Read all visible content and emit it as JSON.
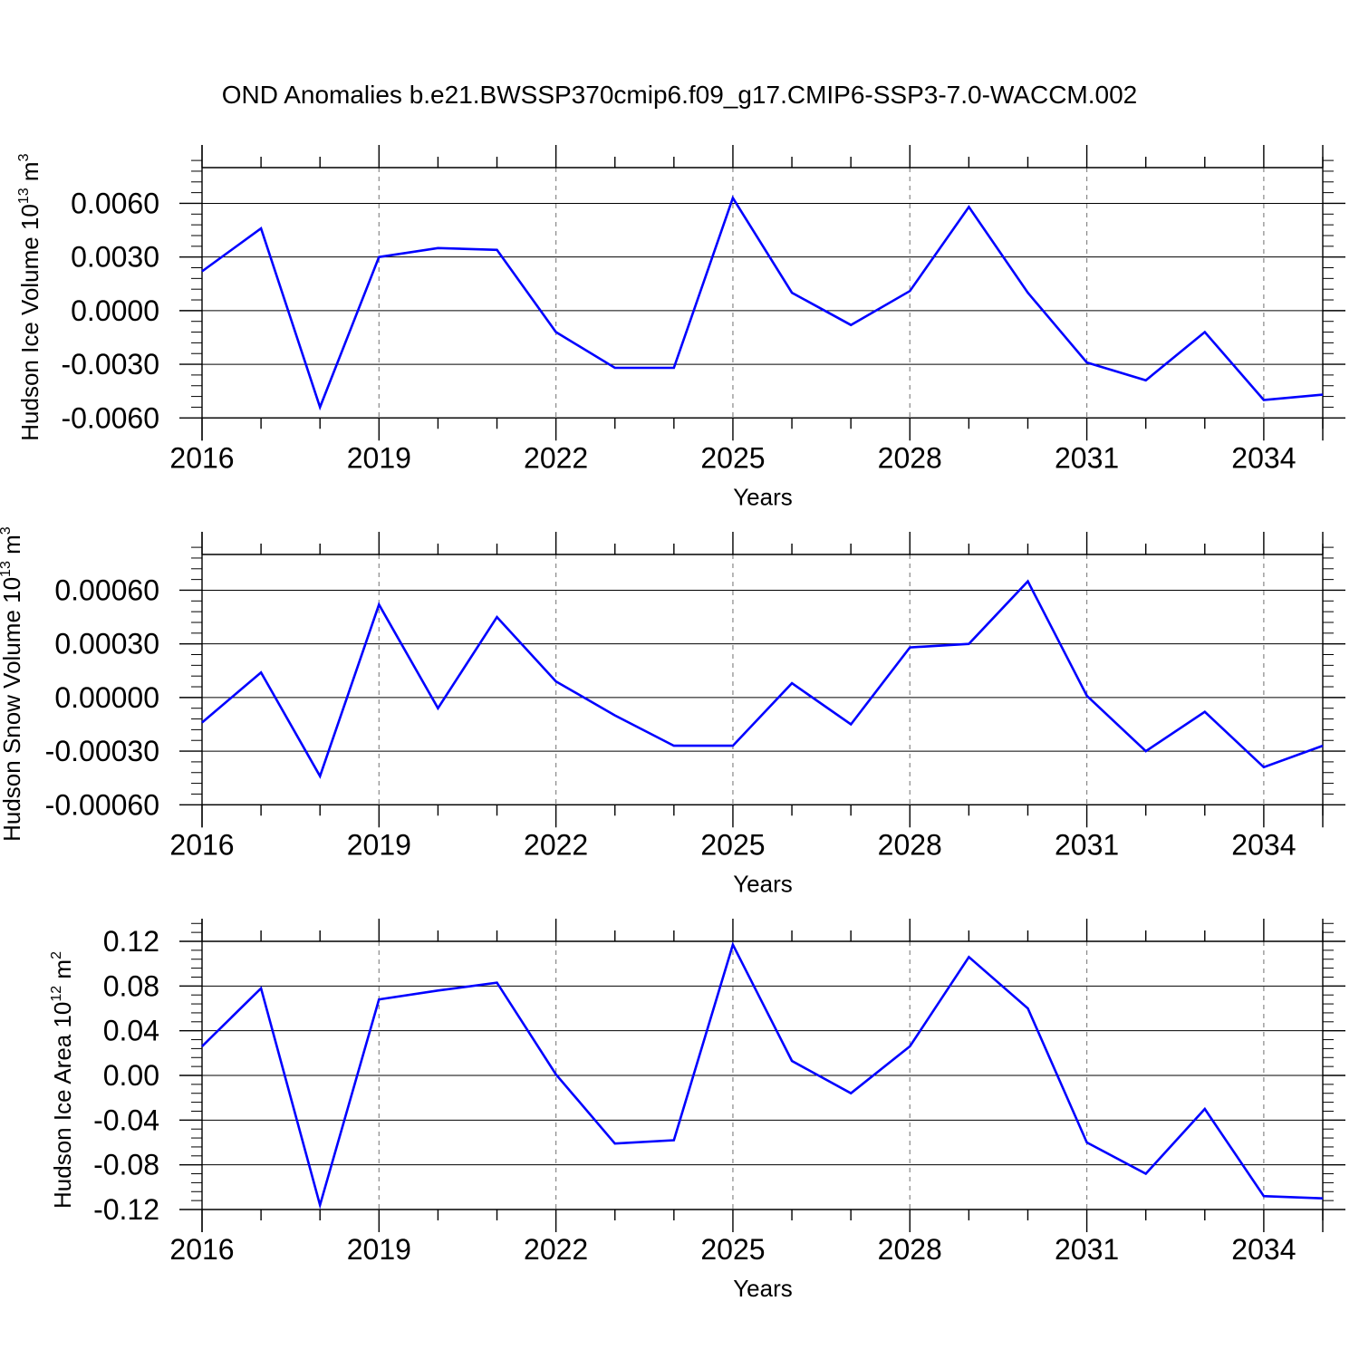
{
  "title": "OND Anomalies b.e21.BWSSP370cmip6.f09_g17.CMIP6-SSP3-7.0-WACCM.002",
  "colors": {
    "line": "#0000ff",
    "axis": "#000000",
    "grid": "#888888"
  },
  "chart_data": [
    {
      "type": "line",
      "ylabel": {
        "main": "Hudson Ice Volume 10",
        "exp": "13",
        "unit": " m",
        "unit_exp": "3"
      },
      "xlabel": "Years",
      "xlim": [
        2016,
        2035
      ],
      "ylim": [
        -0.007,
        0.008
      ],
      "yticks": [
        -0.006,
        -0.003,
        0.0,
        0.003,
        0.006
      ],
      "ytick_labels": [
        "-0.0060",
        "-0.0030",
        "0.0000",
        "0.0030",
        "0.0060"
      ],
      "xticks": [
        2016,
        2019,
        2022,
        2025,
        2028,
        2031,
        2034
      ],
      "xtick_labels": [
        "2016",
        "2019",
        "2022",
        "2025",
        "2028",
        "2031",
        "2034"
      ],
      "grid": "vertical dashed at major x ticks",
      "x": [
        2016,
        2017,
        2018,
        2019,
        2020,
        2021,
        2022,
        2023,
        2024,
        2025,
        2026,
        2027,
        2028,
        2029,
        2030,
        2031,
        2032,
        2033,
        2034,
        2035
      ],
      "y": [
        0.0022,
        0.0046,
        -0.0054,
        0.003,
        0.0035,
        0.0034,
        -0.0012,
        -0.0032,
        -0.0032,
        0.0063,
        0.001,
        -0.0008,
        0.0011,
        0.0058,
        0.001,
        -0.0029,
        -0.0039,
        -0.0012,
        -0.005,
        -0.0047
      ]
    },
    {
      "type": "line",
      "ylabel": {
        "main": "Hudson Snow Volume 10",
        "exp": "13",
        "unit": " m",
        "unit_exp": "3"
      },
      "xlabel": "Years",
      "xlim": [
        2016,
        2035
      ],
      "ylim": [
        -0.0007,
        0.0008
      ],
      "yticks": [
        -0.0006,
        -0.0003,
        0.0,
        0.0003,
        0.0006
      ],
      "ytick_labels": [
        "-0.00060",
        "-0.00030",
        "0.00000",
        "0.00030",
        "0.00060"
      ],
      "xticks": [
        2016,
        2019,
        2022,
        2025,
        2028,
        2031,
        2034
      ],
      "xtick_labels": [
        "2016",
        "2019",
        "2022",
        "2025",
        "2028",
        "2031",
        "2034"
      ],
      "grid": "vertical dashed at major x ticks",
      "x": [
        2016,
        2017,
        2018,
        2019,
        2020,
        2021,
        2022,
        2023,
        2024,
        2025,
        2026,
        2027,
        2028,
        2029,
        2030,
        2031,
        2032,
        2033,
        2034,
        2035
      ],
      "y": [
        -0.00014,
        0.00014,
        -0.00044,
        0.00052,
        -6e-05,
        0.00045,
        9e-05,
        -0.0001,
        -0.00027,
        -0.00027,
        8e-05,
        -0.00015,
        0.00028,
        0.0003,
        0.00065,
        1e-05,
        -0.0003,
        -8e-05,
        -0.00039,
        -0.00027
      ]
    },
    {
      "type": "line",
      "ylabel": {
        "main": "Hudson Ice Area 10",
        "exp": "12",
        "unit": " m",
        "unit_exp": "2"
      },
      "xlabel": "Years",
      "xlim": [
        2016,
        2035
      ],
      "ylim": [
        -0.12,
        0.12
      ],
      "yticks": [
        -0.12,
        -0.08,
        -0.04,
        0.0,
        0.04,
        0.08,
        0.12
      ],
      "ytick_labels": [
        "-0.12",
        "-0.08",
        "-0.04",
        "0.00",
        "0.04",
        "0.08",
        "0.12"
      ],
      "xticks": [
        2016,
        2019,
        2022,
        2025,
        2028,
        2031,
        2034
      ],
      "xtick_labels": [
        "2016",
        "2019",
        "2022",
        "2025",
        "2028",
        "2031",
        "2034"
      ],
      "grid": "vertical dashed at major x ticks",
      "x": [
        2016,
        2017,
        2018,
        2019,
        2020,
        2021,
        2022,
        2023,
        2024,
        2025,
        2026,
        2027,
        2028,
        2029,
        2030,
        2031,
        2032,
        2033,
        2034,
        2035
      ],
      "y": [
        0.026,
        0.078,
        -0.116,
        0.068,
        0.076,
        0.083,
        0.001,
        -0.061,
        -0.058,
        0.117,
        0.013,
        -0.016,
        0.026,
        0.106,
        0.06,
        -0.06,
        -0.088,
        -0.03,
        -0.108,
        -0.11
      ]
    }
  ]
}
